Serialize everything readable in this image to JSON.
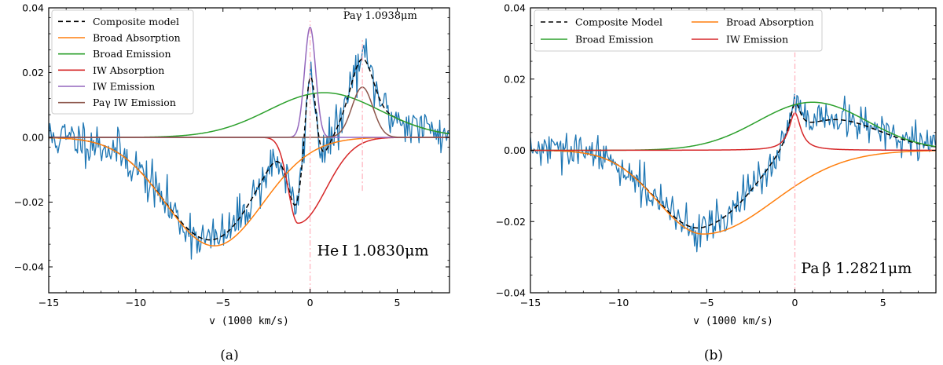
{
  "chart_data": [
    {
      "type": "line",
      "panel_label": "(a)",
      "xlabel": "v (1000 km/s)",
      "ylabel": "",
      "xlim": [
        -15,
        8
      ],
      "ylim": [
        -0.048,
        0.04
      ],
      "xticks": [
        -15,
        -10,
        -5,
        0,
        5
      ],
      "xtick_labels": [
        "−15",
        "−10",
        "−5",
        "0",
        "5"
      ],
      "yticks": [
        -0.04,
        -0.02,
        0.0,
        0.02,
        0.04
      ],
      "ytick_labels": [
        "−0.04",
        "−0.02",
        "0.00",
        "0.02",
        "0.04"
      ],
      "legend_position": "top-left",
      "annotations": [
        {
          "text": "He I 1.0830μm",
          "x": 0.4,
          "y": -0.0365,
          "size": "big",
          "anchor": "start"
        },
        {
          "text": "Paγ 1.0938μm",
          "x": 1.9,
          "y": 0.0366,
          "size": "small",
          "anchor": "start"
        }
      ],
      "vlines": [
        {
          "x": 0.0,
          "y0": -0.048,
          "y1": 0.036
        },
        {
          "x": 3.0,
          "y0": -0.0165,
          "y1": 0.0305
        }
      ],
      "noise": {
        "seed": 11,
        "sigma": 0.0034,
        "step": 0.066
      },
      "series": [
        {
          "name": "Composite model",
          "color": "#000000",
          "dash": "6,4",
          "legend": true,
          "components": [
            {
              "A": -0.0335,
              "mu": -5.5,
              "sig": 2.8
            },
            {
              "A": 0.0138,
              "mu": 0.8,
              "sig": 3.2
            },
            {
              "A": -0.0265,
              "mu": -0.7,
              "sig": 0.55,
              "tail": 1.6
            },
            {
              "A": 0.034,
              "mu": 0.0,
              "sig": 0.32
            },
            {
              "A": 0.0155,
              "mu": 3.0,
              "sig": 0.6
            }
          ]
        },
        {
          "name": "Broad Absorption",
          "color": "#ff7f0e",
          "legend": true,
          "components": [
            {
              "A": -0.0335,
              "mu": -5.5,
              "sig": 2.8
            }
          ]
        },
        {
          "name": "Broad Emission",
          "color": "#2ca02c",
          "legend": true,
          "components": [
            {
              "A": 0.0138,
              "mu": 0.8,
              "sig": 3.2
            }
          ]
        },
        {
          "name": "IW Absorption",
          "color": "#d62728",
          "legend": true,
          "components": [
            {
              "A": -0.0265,
              "mu": -0.7,
              "sig": 0.55,
              "tail": 1.6
            }
          ]
        },
        {
          "name": "IW Emission",
          "color": "#9467bd",
          "legend": true,
          "components": [
            {
              "A": 0.034,
              "mu": 0.0,
              "sig": 0.32
            }
          ]
        },
        {
          "name": "Paγ IW Emission",
          "color": "#8c564b",
          "legend": true,
          "components": [
            {
              "A": 0.0155,
              "mu": 3.0,
              "sig": 0.6
            }
          ]
        },
        {
          "name": "Observed data",
          "color": "#1f77b4",
          "legend": false,
          "observed": true,
          "components": [
            {
              "A": -0.0335,
              "mu": -5.5,
              "sig": 2.8
            },
            {
              "A": 0.0138,
              "mu": 0.8,
              "sig": 3.2
            },
            {
              "A": -0.0265,
              "mu": -0.7,
              "sig": 0.55,
              "tail": 1.6
            },
            {
              "A": 0.034,
              "mu": 0.0,
              "sig": 0.32
            },
            {
              "A": 0.0155,
              "mu": 3.0,
              "sig": 0.6
            }
          ]
        }
      ]
    },
    {
      "type": "line",
      "panel_label": "(b)",
      "xlabel": "v (1000 km/s)",
      "ylabel": "",
      "xlim": [
        -15,
        8
      ],
      "ylim": [
        -0.04,
        0.04
      ],
      "xticks": [
        -15,
        -10,
        -5,
        0,
        5
      ],
      "xtick_labels": [
        "−15",
        "−10",
        "−5",
        "0",
        "5"
      ],
      "yticks": [
        -0.04,
        -0.02,
        0.0,
        0.02,
        0.04
      ],
      "ytick_labels": [
        "−0.04",
        "−0.02",
        "0.00",
        "0.02",
        "0.04"
      ],
      "legend_position": "top-left",
      "legend_columns": 2,
      "annotations": [
        {
          "text": "Pa β 1.2821μm",
          "x": 0.35,
          "y": -0.0345,
          "size": "big",
          "anchor": "start"
        }
      ],
      "vlines": [
        {
          "x": 0.0,
          "y0": -0.04,
          "y1": 0.0275
        }
      ],
      "noise": {
        "seed": 29,
        "sigma": 0.0026,
        "step": 0.066
      },
      "series": [
        {
          "name": "Composite Model",
          "color": "#000000",
          "dash": "6,4",
          "legend": true,
          "components": [
            {
              "A": -0.0235,
              "mu": -5.2,
              "sig": 2.6,
              "tail": 4.0
            },
            {
              "A": 0.0135,
              "mu": 1.0,
              "sig": 3.1
            },
            {
              "A": 0.0105,
              "mu": 0.0,
              "sig": 0.4,
              "lor": true
            }
          ]
        },
        {
          "name": "Broad Absorption",
          "color": "#ff7f0e",
          "legend": true,
          "components": [
            {
              "A": -0.0235,
              "mu": -5.2,
              "sig": 2.6,
              "tail": 4.0
            }
          ]
        },
        {
          "name": "Broad Emission",
          "color": "#2ca02c",
          "legend": true,
          "components": [
            {
              "A": 0.0135,
              "mu": 1.0,
              "sig": 3.1
            }
          ]
        },
        {
          "name": "IW Emission",
          "color": "#d62728",
          "legend": true,
          "components": [
            {
              "A": 0.0105,
              "mu": 0.0,
              "sig": 0.4,
              "lor": true
            }
          ]
        },
        {
          "name": "Observed data",
          "color": "#1f77b4",
          "legend": false,
          "observed": true,
          "components": [
            {
              "A": -0.0235,
              "mu": -5.2,
              "sig": 2.6,
              "tail": 4.0
            },
            {
              "A": 0.0135,
              "mu": 1.0,
              "sig": 3.1
            },
            {
              "A": 0.0105,
              "mu": 0.0,
              "sig": 0.4,
              "lor": true
            }
          ]
        }
      ]
    }
  ]
}
